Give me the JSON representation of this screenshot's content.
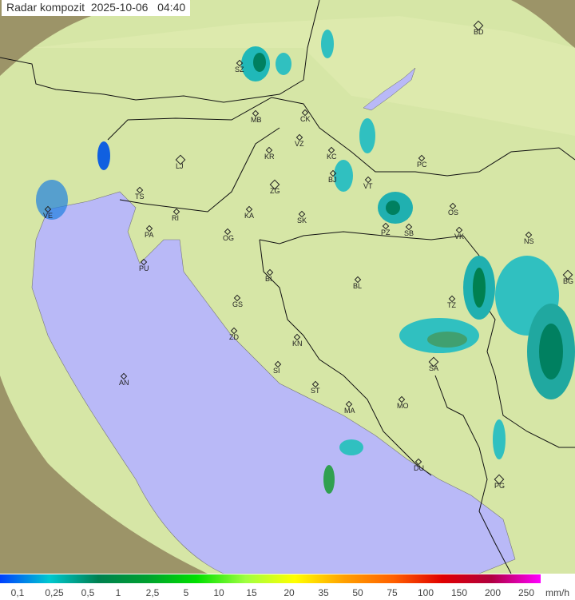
{
  "title": "Radar kompozit  2025-10-06   04:40",
  "legend": {
    "ticks": [
      "0,1",
      "0,25",
      "0,5",
      "1",
      "2,5",
      "5",
      "10",
      "15",
      "20",
      "35",
      "50",
      "75",
      "100",
      "150",
      "200",
      "250"
    ],
    "unit": "mm/h",
    "colors": [
      "#0040ff",
      "#00c8d0",
      "#008050",
      "#00a030",
      "#00e000",
      "#a0ff40",
      "#ffff00",
      "#ffa000",
      "#ff6000",
      "#e00000",
      "#b00040",
      "#ff00ff"
    ]
  },
  "colors": {
    "sea": "#b8b8f8",
    "land": "#d8e8a8",
    "outside": "#a8a070",
    "echo_light": "#30c0c0",
    "echo_dark": "#008060"
  },
  "cities": [
    {
      "code": "SZ"
    },
    {
      "code": "MB"
    },
    {
      "code": "CK"
    },
    {
      "code": "VZ"
    },
    {
      "code": "KR"
    },
    {
      "code": "KC"
    },
    {
      "code": "LJ"
    },
    {
      "code": "ZG"
    },
    {
      "code": "BJ"
    },
    {
      "code": "VT"
    },
    {
      "code": "PC"
    },
    {
      "code": "TS"
    },
    {
      "code": "KA"
    },
    {
      "code": "SK"
    },
    {
      "code": "RI"
    },
    {
      "code": "OS"
    },
    {
      "code": "PZ"
    },
    {
      "code": "SB"
    },
    {
      "code": "VK"
    },
    {
      "code": "PA"
    },
    {
      "code": "OG"
    },
    {
      "code": "NS"
    },
    {
      "code": "PU"
    },
    {
      "code": "BI"
    },
    {
      "code": "BL"
    },
    {
      "code": "BG"
    },
    {
      "code": "GS"
    },
    {
      "code": "TZ"
    },
    {
      "code": "ZD"
    },
    {
      "code": "KN"
    },
    {
      "code": "SI"
    },
    {
      "code": "SA"
    },
    {
      "code": "AN"
    },
    {
      "code": "ST"
    },
    {
      "code": "MA"
    },
    {
      "code": "MO"
    },
    {
      "code": "DU"
    },
    {
      "code": "PG"
    },
    {
      "code": "VE"
    },
    {
      "code": "BD"
    }
  ]
}
